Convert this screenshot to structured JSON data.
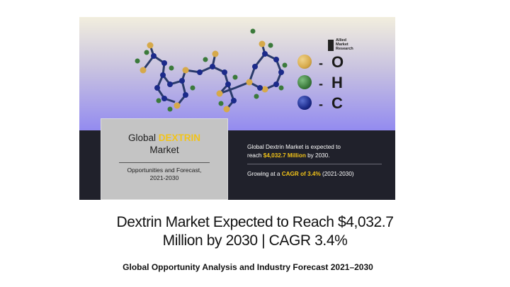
{
  "banner": {
    "logo_text": [
      "Allied",
      "Market",
      "Research"
    ],
    "legend": [
      {
        "symbol": "O",
        "color": "#d6a94a"
      },
      {
        "symbol": "H",
        "color": "#3b7a3b"
      },
      {
        "symbol": "C",
        "color": "#1b2a8a"
      }
    ],
    "card": {
      "title_prefix": "Global",
      "title_highlight": "DEXTRIN",
      "title_line2": "Market",
      "opportunities_line1": "Opportunities and Forecast,",
      "opportunities_line2": "2021-2030"
    },
    "info1": {
      "line1": "Global Dextrin Market is expected to",
      "prefix": "reach",
      "value": "$4,032.7 Million",
      "suffix": "by 2030."
    },
    "info2": {
      "prefix": "Growing at a",
      "cagr": "CAGR of 3.4%",
      "suffix": "(2021-2030)"
    },
    "colors": {
      "top_gradient_start": "#f2eede",
      "top_gradient_end": "#938bf0",
      "bottom": "#20212b",
      "highlight": "#f2c318"
    }
  },
  "headline": {
    "line1": "Dextrin Market Expected to Reach $4,032.7",
    "line2": "Million by 2030 | CAGR 3.4%"
  },
  "subhead": "Global Opportunity Analysis and Industry Forecast 2021–2030"
}
